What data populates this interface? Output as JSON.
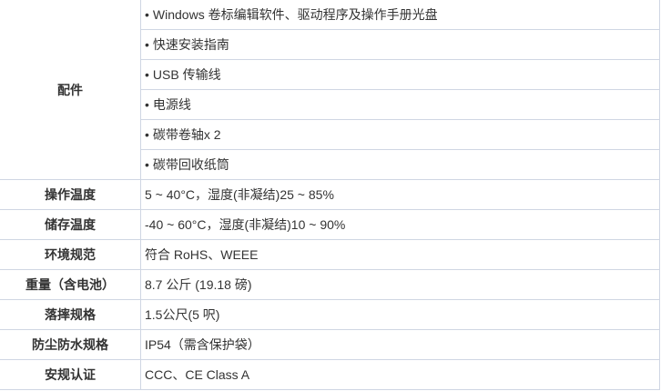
{
  "accessories": {
    "label": "配件",
    "items": [
      "Windows 卷标编辑软件、驱动程序及操作手册光盘",
      "快速安装指南",
      "USB 传输线",
      "电源线",
      "碳带卷轴x 2",
      "碳带回收纸筒"
    ]
  },
  "specs": [
    {
      "label": "操作温度",
      "value": "5 ~ 40°C，湿度(非凝结)25 ~ 85%"
    },
    {
      "label": "储存温度",
      "value": "-40 ~ 60°C，湿度(非凝结)10 ~ 90%"
    },
    {
      "label": "环境规范",
      "value": "符合 RoHS、WEEE"
    },
    {
      "label": "重量（含电池）",
      "value": "8.7 公斤 (19.18 磅)"
    },
    {
      "label": "落摔规格",
      "value": "1.5公尺(5 呎)"
    },
    {
      "label": "防尘防水规格",
      "value": "IP54（需含保护袋）"
    },
    {
      "label": "安规认证",
      "value": "CCC、CE Class A"
    }
  ]
}
